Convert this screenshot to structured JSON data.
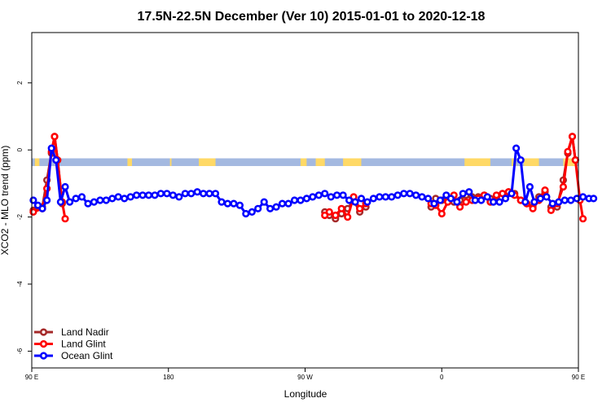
{
  "chart_data": {
    "type": "line",
    "title": "17.5N-22.5N December (Ver 10)   2015-01-01 to 2020-12-18",
    "xlabel": "Longitude",
    "ylabel": "XCO2 - MLO trend (ppm)",
    "xlim": [
      90,
      450
    ],
    "ylim": [
      -6.5,
      3.5
    ],
    "x_ticks": [
      {
        "value": 90,
        "label": "90 E"
      },
      {
        "value": 180,
        "label": "180"
      },
      {
        "value": 270,
        "label": "90 W"
      },
      {
        "value": 360,
        "label": "0"
      },
      {
        "value": 450,
        "label": "90 E"
      },
      {
        "value": 540,
        "label": "180"
      }
    ],
    "y_ticks": [
      {
        "value": 2,
        "label": "2"
      },
      {
        "value": 0,
        "label": "0"
      },
      {
        "value": -2,
        "label": "-2"
      },
      {
        "value": -4,
        "label": "-4"
      },
      {
        "value": -6,
        "label": "-6"
      }
    ],
    "legend_position": "bottom-left",
    "colors": {
      "land_nadir": "#a52a2a",
      "land_glint": "#ff0000",
      "ocean_glint": "#0000ff",
      "land_band": "#ffd966",
      "ocean_band": "#a4b9e0"
    },
    "series": [
      {
        "name": "Land Nadir",
        "color": "#a52a2a",
        "segments": [
          [
            [
              91,
              -1.8
            ],
            [
              97,
              -1.7
            ],
            [
              100,
              -0.9
            ],
            [
              103,
              -0.1
            ],
            [
              105,
              0.4
            ],
            [
              107,
              -0.3
            ],
            [
              110,
              -1.6
            ]
          ],
          [
            [
              283,
              -1.85
            ],
            [
              286,
              -1.95
            ],
            [
              290,
              -2.05
            ],
            [
              294,
              -1.9
            ],
            [
              298,
              -1.75
            ],
            [
              302,
              -1.5
            ],
            [
              306,
              -1.85
            ],
            [
              310,
              -1.7
            ]
          ],
          [
            [
              353,
              -1.7
            ],
            [
              356,
              -1.45
            ],
            [
              360,
              -1.5
            ],
            [
              364,
              -1.45
            ],
            [
              368,
              -1.55
            ],
            [
              372,
              -1.5
            ],
            [
              376,
              -1.35
            ],
            [
              380,
              -1.4
            ],
            [
              384,
              -1.4
            ],
            [
              388,
              -1.35
            ],
            [
              392,
              -1.45
            ],
            [
              396,
              -1.4
            ],
            [
              400,
              -1.3
            ],
            [
              404,
              -1.25
            ],
            [
              408,
              -1.3
            ],
            [
              412,
              -1.5
            ],
            [
              416,
              -1.6
            ],
            [
              420,
              -1.7
            ],
            [
              424,
              -1.4
            ],
            [
              428,
              -1.25
            ]
          ],
          [
            [
              432,
              -1.7
            ],
            [
              436,
              -1.7
            ],
            [
              440,
              -0.9
            ],
            [
              443,
              -0.1
            ],
            [
              446,
              0.4
            ],
            [
              448,
              -0.3
            ]
          ]
        ]
      },
      {
        "name": "Land Glint",
        "color": "#ff0000",
        "segments": [
          [
            [
              91,
              -1.85
            ],
            [
              97,
              -1.75
            ],
            [
              100,
              -1.15
            ],
            [
              103,
              -0.05
            ],
            [
              105,
              0.4
            ],
            [
              107,
              -0.3
            ],
            [
              110,
              -1.55
            ],
            [
              112,
              -2.05
            ]
          ],
          [
            [
              283,
              -1.95
            ],
            [
              286,
              -1.85
            ],
            [
              290,
              -1.95
            ],
            [
              294,
              -1.75
            ],
            [
              298,
              -2.0
            ],
            [
              302,
              -1.4
            ],
            [
              306,
              -1.75
            ],
            [
              310,
              -1.6
            ]
          ],
          [
            [
              353,
              -1.6
            ],
            [
              356,
              -1.65
            ],
            [
              360,
              -1.9
            ],
            [
              364,
              -1.55
            ],
            [
              368,
              -1.35
            ],
            [
              372,
              -1.7
            ],
            [
              376,
              -1.55
            ],
            [
              380,
              -1.5
            ],
            [
              384,
              -1.45
            ],
            [
              388,
              -1.35
            ],
            [
              392,
              -1.55
            ],
            [
              396,
              -1.35
            ],
            [
              400,
              -1.3
            ],
            [
              404,
              -1.25
            ],
            [
              408,
              -1.35
            ],
            [
              412,
              -1.5
            ],
            [
              416,
              -1.6
            ],
            [
              420,
              -1.75
            ],
            [
              424,
              -1.5
            ],
            [
              428,
              -1.2
            ]
          ],
          [
            [
              432,
              -1.8
            ],
            [
              436,
              -1.6
            ],
            [
              440,
              -1.1
            ],
            [
              443,
              -0.05
            ],
            [
              446,
              0.4
            ],
            [
              448,
              -0.3
            ],
            [
              451,
              -1.5
            ],
            [
              453,
              -2.05
            ]
          ]
        ]
      },
      {
        "name": "Ocean Glint",
        "color": "#0000ff",
        "segments": [
          [
            [
              91,
              -1.5
            ],
            [
              94,
              -1.65
            ],
            [
              97,
              -1.75
            ],
            [
              100,
              -1.5
            ],
            [
              103,
              0.05
            ],
            [
              106,
              -0.3
            ],
            [
              109,
              -1.55
            ],
            [
              112,
              -1.1
            ],
            [
              115,
              -1.55
            ],
            [
              119,
              -1.45
            ],
            [
              123,
              -1.4
            ],
            [
              127,
              -1.6
            ],
            [
              131,
              -1.55
            ],
            [
              135,
              -1.5
            ],
            [
              139,
              -1.5
            ],
            [
              143,
              -1.45
            ],
            [
              147,
              -1.4
            ],
            [
              151,
              -1.45
            ],
            [
              155,
              -1.4
            ],
            [
              159,
              -1.35
            ],
            [
              163,
              -1.35
            ],
            [
              167,
              -1.35
            ],
            [
              171,
              -1.35
            ],
            [
              175,
              -1.3
            ],
            [
              179,
              -1.3
            ],
            [
              183,
              -1.35
            ],
            [
              187,
              -1.4
            ],
            [
              191,
              -1.3
            ],
            [
              195,
              -1.3
            ],
            [
              199,
              -1.25
            ],
            [
              203,
              -1.3
            ],
            [
              207,
              -1.3
            ],
            [
              211,
              -1.3
            ],
            [
              215,
              -1.55
            ],
            [
              219,
              -1.6
            ],
            [
              223,
              -1.6
            ],
            [
              227,
              -1.65
            ],
            [
              231,
              -1.9
            ],
            [
              235,
              -1.85
            ],
            [
              239,
              -1.75
            ],
            [
              243,
              -1.55
            ],
            [
              247,
              -1.75
            ],
            [
              251,
              -1.7
            ],
            [
              255,
              -1.6
            ],
            [
              259,
              -1.6
            ],
            [
              263,
              -1.5
            ],
            [
              267,
              -1.5
            ],
            [
              271,
              -1.45
            ],
            [
              275,
              -1.4
            ],
            [
              279,
              -1.35
            ],
            [
              283,
              -1.3
            ],
            [
              287,
              -1.4
            ],
            [
              291,
              -1.35
            ],
            [
              295,
              -1.35
            ],
            [
              299,
              -1.5
            ],
            [
              303,
              -1.55
            ],
            [
              307,
              -1.45
            ],
            [
              311,
              -1.55
            ],
            [
              315,
              -1.45
            ],
            [
              319,
              -1.4
            ],
            [
              323,
              -1.4
            ],
            [
              327,
              -1.4
            ],
            [
              331,
              -1.35
            ],
            [
              335,
              -1.3
            ],
            [
              339,
              -1.3
            ],
            [
              343,
              -1.35
            ],
            [
              347,
              -1.4
            ],
            [
              351,
              -1.45
            ],
            [
              355,
              -1.6
            ],
            [
              359,
              -1.5
            ],
            [
              363,
              -1.35
            ],
            [
              366,
              -1.45
            ],
            [
              370,
              -1.55
            ],
            [
              374,
              -1.3
            ],
            [
              378,
              -1.25
            ],
            [
              382,
              -1.5
            ],
            [
              386,
              -1.5
            ],
            [
              390,
              -1.4
            ],
            [
              394,
              -1.55
            ],
            [
              398,
              -1.55
            ],
            [
              402,
              -1.45
            ],
            [
              406,
              -1.3
            ],
            [
              409,
              0.05
            ],
            [
              412,
              -0.3
            ],
            [
              415,
              -1.55
            ],
            [
              418,
              -1.1
            ],
            [
              421,
              -1.55
            ],
            [
              425,
              -1.45
            ],
            [
              429,
              -1.4
            ],
            [
              433,
              -1.6
            ],
            [
              437,
              -1.55
            ],
            [
              441,
              -1.5
            ],
            [
              445,
              -1.5
            ],
            [
              449,
              -1.45
            ],
            [
              453,
              -1.4
            ],
            [
              457,
              -1.45
            ],
            [
              460,
              -1.45
            ]
          ]
        ]
      }
    ],
    "surface_band": {
      "y_range": [
        -0.48,
        -0.25
      ],
      "land_ranges": [
        [
          92,
          95
        ],
        [
          153,
          156
        ],
        [
          181,
          182
        ],
        [
          200,
          211
        ],
        [
          267,
          271
        ],
        [
          277,
          283
        ],
        [
          295,
          307
        ],
        [
          375,
          392
        ],
        [
          406,
          409
        ],
        [
          414,
          424
        ],
        [
          440,
          449
        ]
      ]
    }
  }
}
